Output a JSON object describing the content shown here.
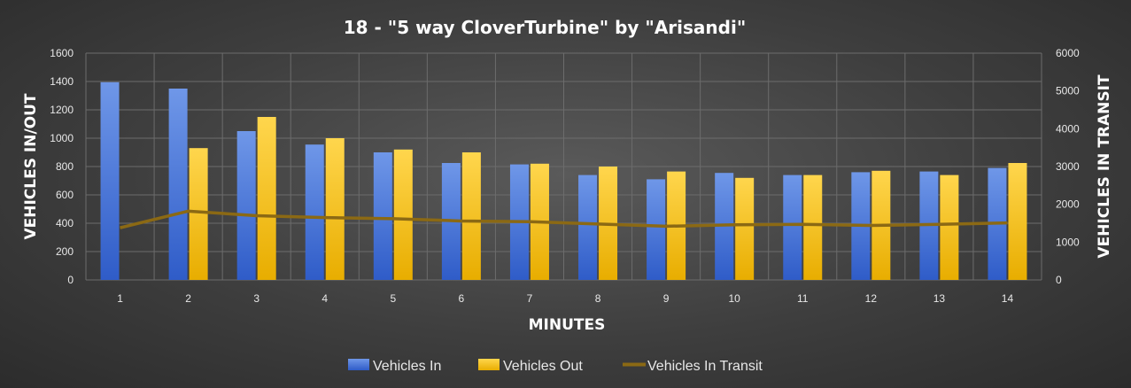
{
  "chart_data": {
    "type": "bar",
    "title": "18 - \"5 way CloverTurbine\" by \"Arisandi\"",
    "xlabel": "MINUTES",
    "ylabel": "VEHICLES IN/OUT",
    "y2label": "VEHICLES IN TRANSIT",
    "categories": [
      "1",
      "2",
      "3",
      "4",
      "5",
      "6",
      "7",
      "8",
      "9",
      "10",
      "11",
      "12",
      "13",
      "14"
    ],
    "ylim": [
      0,
      1600
    ],
    "yticks": [
      "0",
      "200",
      "400",
      "600",
      "800",
      "1000",
      "1200",
      "1400",
      "1600"
    ],
    "y2lim": [
      0,
      6000
    ],
    "y2ticks": [
      "0",
      "1000",
      "2000",
      "3000",
      "4000",
      "5000",
      "6000"
    ],
    "grid": true,
    "legend_position": "bottom",
    "series": [
      {
        "name": "Vehicles In",
        "type": "bar",
        "axis": "left",
        "color": "#4a78d6",
        "values": [
          1395,
          1350,
          1050,
          955,
          900,
          825,
          815,
          740,
          710,
          755,
          740,
          760,
          765,
          790
        ]
      },
      {
        "name": "Vehicles Out",
        "type": "bar",
        "axis": "left",
        "color": "#ffc000",
        "values": [
          0,
          930,
          1150,
          1000,
          920,
          900,
          820,
          800,
          765,
          720,
          740,
          770,
          740,
          825
        ]
      },
      {
        "name": "Vehicles In Transit",
        "type": "line",
        "axis": "right",
        "color": "#8b6914",
        "values": [
          1380,
          1820,
          1700,
          1650,
          1620,
          1560,
          1540,
          1480,
          1420,
          1460,
          1470,
          1440,
          1470,
          1510
        ]
      }
    ]
  }
}
